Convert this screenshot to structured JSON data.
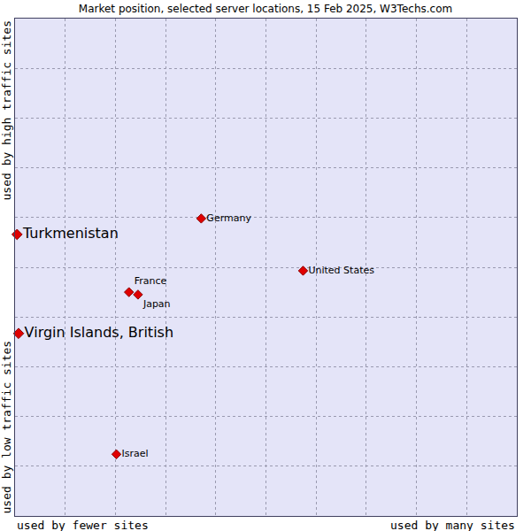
{
  "chart_data": {
    "type": "scatter",
    "title": "Market position, selected server locations, 15 Feb 2025, W3Techs.com",
    "xlabels": [
      "used by fewer sites",
      "used by many sites"
    ],
    "ylabels": [
      "used by low traffic sites",
      "used by high traffic sites"
    ],
    "series": [
      {
        "labels": [
          "Turkmenistan",
          "Virgin Islands, British"
        ],
        "x": [
          0.04,
          0.07
        ],
        "values": [
          5.66,
          3.67
        ],
        "color": "#e00000"
      },
      {
        "labels": [
          "Germany",
          "United States",
          "France",
          "Japan",
          "Israel"
        ],
        "x": [
          3.71,
          5.74,
          2.27,
          2.45,
          2.02
        ],
        "values": [
          5.98,
          4.93,
          4.5,
          4.45,
          1.24
        ],
        "color": "#e00000"
      }
    ],
    "xlim": [
      0,
      10
    ],
    "ylim": [
      0,
      10
    ],
    "xticks": [
      0,
      1,
      2,
      3,
      4,
      5,
      6,
      7,
      8,
      9,
      10
    ],
    "yticks": [
      0,
      1,
      2,
      3,
      4,
      5,
      6,
      7,
      8,
      9,
      10
    ],
    "grid": true,
    "tick_labels": false,
    "marker": "diamond"
  }
}
